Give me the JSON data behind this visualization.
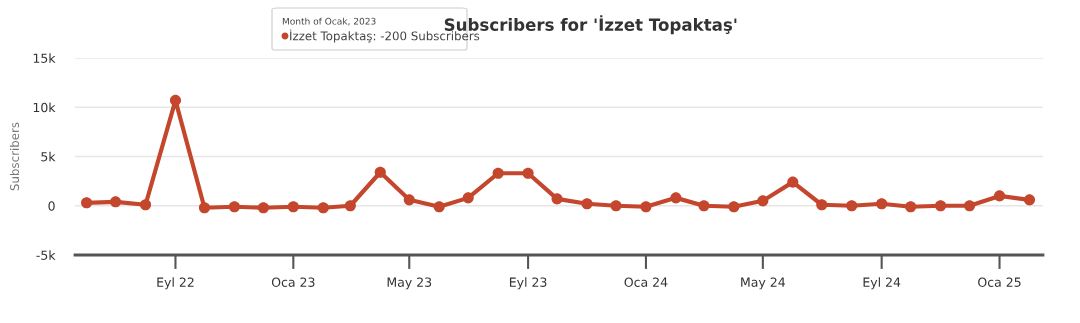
{
  "chart_data": {
    "type": "line",
    "title": "Subscribers for 'İzzet Topaktaş'",
    "ylabel": "Subscribers",
    "x": [
      "2022-06",
      "2022-07",
      "2022-08",
      "2022-09",
      "2022-10",
      "2022-11",
      "2022-12",
      "2023-01",
      "2023-02",
      "2023-03",
      "2023-04",
      "2023-05",
      "2023-06",
      "2023-07",
      "2023-08",
      "2023-09",
      "2023-10",
      "2023-11",
      "2023-12",
      "2024-01",
      "2024-02",
      "2024-03",
      "2024-04",
      "2024-05",
      "2024-06",
      "2024-07",
      "2024-08",
      "2024-09",
      "2024-10",
      "2024-11",
      "2024-12",
      "2025-01",
      "2025-02"
    ],
    "series": [
      {
        "color": "#c4472d",
        "values": [
          300,
          400,
          100,
          10700,
          -200,
          -100,
          -200,
          -100,
          -200,
          0,
          3400,
          600,
          -100,
          800,
          3300,
          3300,
          700,
          200,
          0,
          -100,
          800,
          0,
          -100,
          500,
          2400,
          100,
          0,
          200,
          -100,
          0,
          0,
          1000,
          600
        ]
      }
    ],
    "xlim": [
      "2022-05-20",
      "2025-02-15"
    ],
    "xticks": [
      {
        "value": "2022-09",
        "label": "Eyl 22"
      },
      {
        "value": "2023-01",
        "label": "Oca 23"
      },
      {
        "value": "2023-05",
        "label": "May 23"
      },
      {
        "value": "2023-09",
        "label": "Eyl 23"
      },
      {
        "value": "2024-01",
        "label": "Oca 24"
      },
      {
        "value": "2024-05",
        "label": "May 24"
      },
      {
        "value": "2024-09",
        "label": "Eyl 24"
      },
      {
        "value": "2025-01",
        "label": "Oca 25"
      }
    ],
    "ylim": [
      -5000,
      15000
    ],
    "yticks": [
      {
        "value": -5000,
        "label": "-5k"
      },
      0,
      {
        "value": 5000,
        "label": "5k"
      },
      {
        "value": 10000,
        "label": "10k"
      },
      {
        "value": 15000,
        "label": "15k"
      }
    ],
    "grid": "y",
    "marker": "circle",
    "line_style": "solid",
    "legend": false,
    "annotations": [
      "Month of Ocak, 2023",
      "İzzet Topaktaş: -200 Subscribers"
    ]
  }
}
